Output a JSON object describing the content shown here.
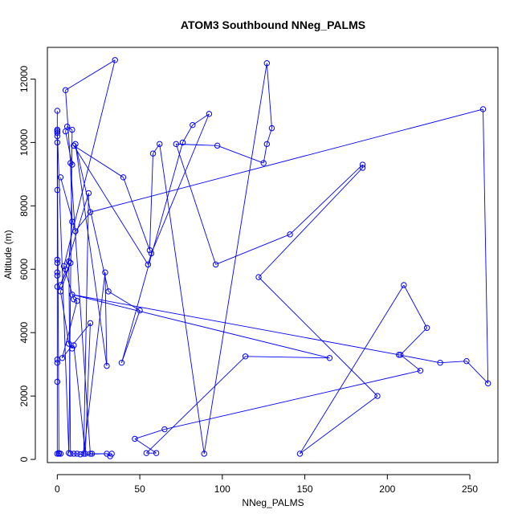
{
  "chart_data": {
    "type": "line",
    "title": "ATOM3 Southbound NNeg_PALMS",
    "xlabel": "NNeg_PALMS",
    "ylabel": "Altitude (m)",
    "xlim": [
      -6,
      267
    ],
    "ylim": [
      -100,
      13000
    ],
    "x_ticks": [
      0,
      50,
      100,
      150,
      200,
      250
    ],
    "y_ticks": [
      0,
      2000,
      4000,
      6000,
      8000,
      10000,
      12000
    ],
    "grid": false,
    "legend": "none",
    "line_color": "#0000ff",
    "series": [
      {
        "points": [
          [
            0,
            11000
          ],
          [
            0,
            10400
          ],
          [
            0,
            10300
          ],
          [
            0,
            10350
          ],
          [
            0,
            10200
          ],
          [
            0,
            10000
          ],
          [
            0,
            8500
          ],
          [
            0,
            6300
          ],
          [
            0,
            6200
          ],
          [
            0,
            5900
          ],
          [
            0,
            5800
          ],
          [
            0,
            5450
          ],
          [
            0,
            3150
          ],
          [
            0,
            3050
          ],
          [
            0,
            2450
          ],
          [
            0,
            180
          ],
          [
            1,
            180
          ],
          [
            2,
            180
          ],
          [
            1,
            200
          ],
          [
            0,
            10400
          ],
          [
            7,
            200
          ],
          [
            9,
            10400
          ],
          [
            6,
            10500
          ],
          [
            5,
            10350
          ],
          [
            9,
            9300
          ],
          [
            8,
            9350
          ],
          [
            9,
            7500
          ],
          [
            7,
            6250
          ],
          [
            8,
            180
          ],
          [
            10,
            180
          ],
          [
            12,
            180
          ],
          [
            14,
            160
          ],
          [
            30,
            180
          ],
          [
            32,
            100
          ],
          [
            33,
            180
          ],
          [
            21,
            180
          ],
          [
            20,
            180
          ],
          [
            5,
            11650
          ],
          [
            35,
            12600
          ],
          [
            4,
            6100
          ],
          [
            10,
            5050
          ],
          [
            12,
            5000
          ],
          [
            3,
            3200
          ],
          [
            20,
            4300
          ],
          [
            17,
            180
          ],
          [
            10,
            3600
          ],
          [
            9,
            3500
          ],
          [
            7,
            3650
          ],
          [
            2,
            5300
          ],
          [
            8,
            6200
          ],
          [
            2,
            5500
          ],
          [
            5,
            6000
          ],
          [
            19,
            8400
          ],
          [
            16,
            180
          ],
          [
            29,
            5900
          ],
          [
            30,
            2950
          ],
          [
            11,
            9950
          ],
          [
            31,
            5300
          ],
          [
            50,
            4700
          ],
          [
            39,
            3050
          ],
          [
            76,
            10000
          ],
          [
            82,
            10550
          ],
          [
            92,
            10900
          ],
          [
            57,
            6500
          ],
          [
            55,
            6150
          ],
          [
            10,
            9900
          ],
          [
            40,
            8900
          ],
          [
            56,
            6600
          ],
          [
            58,
            9650
          ],
          [
            62,
            9950
          ],
          [
            89,
            180
          ],
          [
            127,
            12500
          ],
          [
            130,
            10450
          ],
          [
            127,
            9950
          ],
          [
            125,
            9350
          ],
          [
            97,
            9900
          ],
          [
            72,
            9950
          ],
          [
            96,
            6150
          ],
          [
            141,
            7100
          ],
          [
            185,
            9300
          ],
          [
            185,
            9200
          ],
          [
            122,
            5750
          ],
          [
            194,
            2000
          ],
          [
            147,
            180
          ],
          [
            210,
            5500
          ],
          [
            224,
            4150
          ],
          [
            208,
            3300
          ],
          [
            220,
            2800
          ],
          [
            65,
            950
          ],
          [
            47,
            650
          ],
          [
            60,
            200
          ],
          [
            54,
            200
          ],
          [
            114,
            3250
          ],
          [
            165,
            3200
          ],
          [
            9,
            5200
          ],
          [
            207,
            3300
          ],
          [
            232,
            3050
          ],
          [
            248,
            3100
          ],
          [
            261,
            2400
          ],
          [
            258,
            11050
          ],
          [
            20,
            7800
          ],
          [
            11,
            7200
          ],
          [
            2,
            8900
          ]
        ]
      }
    ]
  }
}
